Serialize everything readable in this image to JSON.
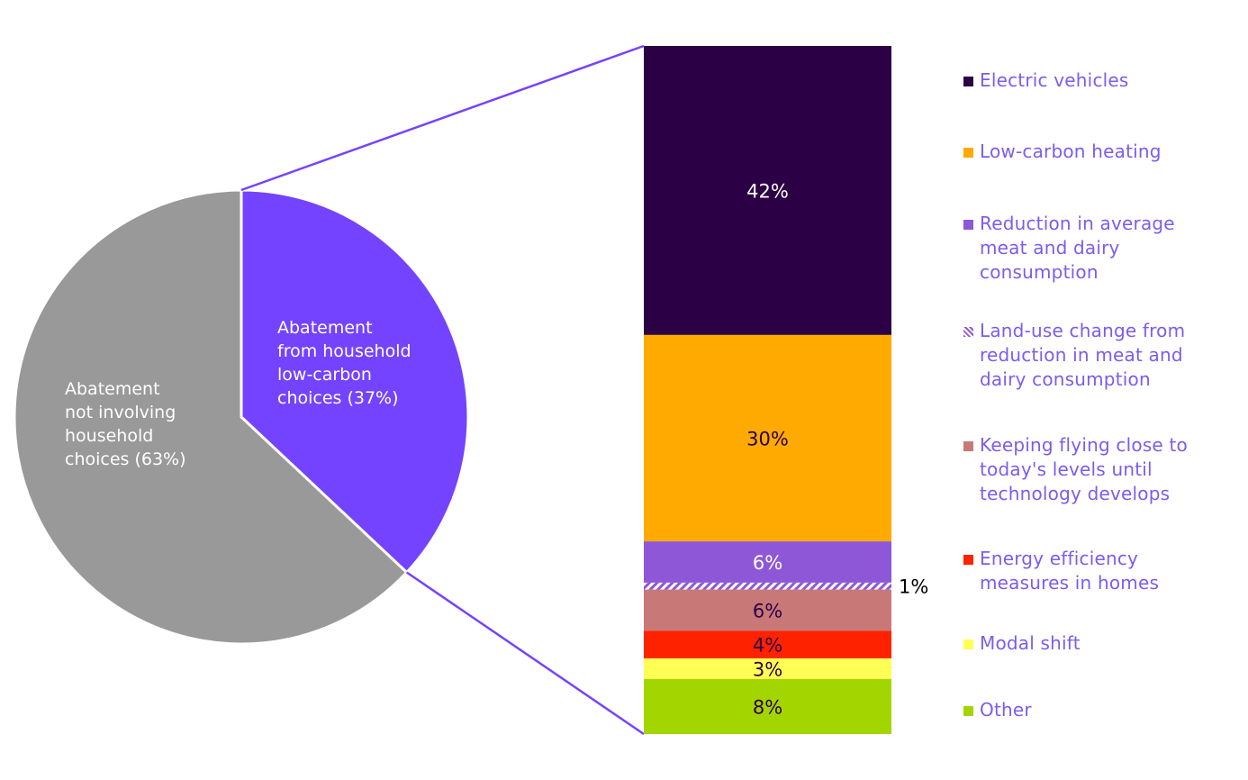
{
  "chart_data": [
    {
      "type": "pie",
      "slices": [
        {
          "label": "Abatement from household low-carbon choices (37%)",
          "value": 37,
          "color": "#7443ff",
          "text_color": "#ffffff"
        },
        {
          "label": "Abatement not involving household choices (63%)",
          "value": 63,
          "color": "#999999",
          "text_color": "#ffffff"
        }
      ]
    },
    {
      "type": "bar",
      "stacked": true,
      "series": [
        {
          "name": "Electric vehicles",
          "value": 42,
          "label": "42%",
          "color": "#2b0045",
          "label_color": "#ffffff"
        },
        {
          "name": "Low-carbon heating",
          "value": 30,
          "label": "30%",
          "color": "#ffaa00",
          "label_color": "#2b0045"
        },
        {
          "name": "Reduction in average meat and dairy consumption",
          "value": 6,
          "label": "6%",
          "color": "#8e57d8",
          "label_color": "#ffffff"
        },
        {
          "name": "Land-use change from reduction in meat and dairy consumption",
          "value": 1,
          "label": "1%",
          "color": "#8e57d8",
          "pattern": "hatched",
          "label_color": "#000000"
        },
        {
          "name": "Keeping flying close to today's levels until technology develops",
          "value": 6,
          "label": "6%",
          "color": "#c97878",
          "label_color": "#2b0045"
        },
        {
          "name": "Energy efficiency measures in homes",
          "value": 4,
          "label": "4%",
          "color": "#ff2200",
          "label_color": "#2b0045"
        },
        {
          "name": "Modal shift",
          "value": 3,
          "label": "3%",
          "color": "#ffff55",
          "label_color": "#2b0045"
        },
        {
          "name": "Other",
          "value": 8,
          "label": "8%",
          "color": "#a3d600",
          "label_color": "#2b0045"
        }
      ]
    }
  ],
  "legend": {
    "items": [
      {
        "label": "Electric vehicles",
        "color": "#2b0045"
      },
      {
        "label": "Low-carbon heating",
        "color": "#ffaa00"
      },
      {
        "label": "Reduction in average meat and dairy consumption",
        "color": "#8e57d8"
      },
      {
        "label": "Land-use change from reduction in meat and dairy consumption",
        "color": "#8e57d8",
        "pattern": "hatched"
      },
      {
        "label": "Keeping flying close to today's levels until technology develops",
        "color": "#c97878"
      },
      {
        "label": "Energy efficiency measures in homes",
        "color": "#ff2200"
      },
      {
        "label": "Modal shift",
        "color": "#ffff55"
      },
      {
        "label": "Other",
        "color": "#a3d600"
      }
    ],
    "text_color": "#7b5cf0",
    "connector_color": "#7443ff"
  }
}
